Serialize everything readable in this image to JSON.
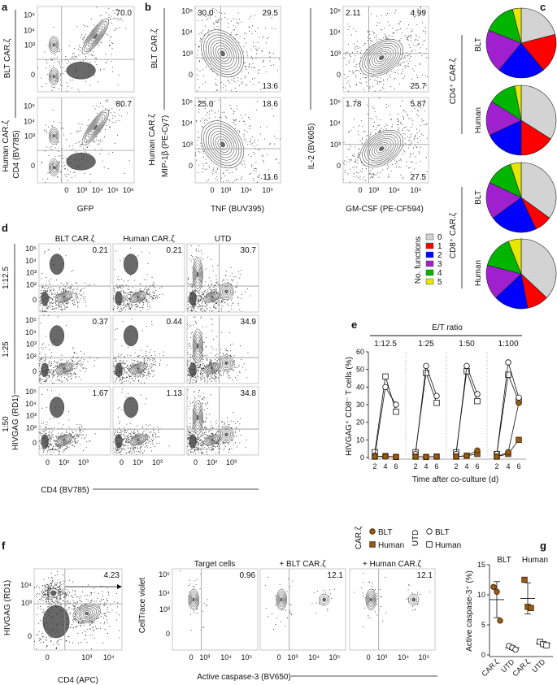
{
  "panel_letters": {
    "a": "a",
    "b": "b",
    "c": "c",
    "d": "d",
    "e": "e",
    "f": "f",
    "g": "g"
  },
  "panel_a": {
    "row_labels": [
      "BLT CAR.ζ",
      "Human CAR.ζ"
    ],
    "ylabel": "CD4 (BV785)",
    "xlabel": "GFP",
    "xticks": [
      "0",
      "10³",
      "10⁴",
      "10⁵",
      "10⁶"
    ],
    "yticks": [
      "0",
      "10³",
      "10⁴",
      "10⁵"
    ],
    "values": [
      "70.0",
      "80.7"
    ]
  },
  "panel_b": {
    "row_labels": [
      "BLT CAR.ζ",
      "Human CAR.ζ"
    ],
    "xticks": [
      "0",
      "10³",
      "10⁴",
      "10⁵"
    ],
    "yticks": [
      "0",
      "10³",
      "10⁴",
      "10⁵"
    ],
    "plots": [
      {
        "xlabel": "TNF (BUV395)",
        "ylabel": "MIP-1β (PE-Cy7)",
        "quadrants": [
          {
            "ul": "30.0",
            "ur": "29.5",
            "lr": "13.6"
          },
          {
            "ul": "25.0",
            "ur": "18.6",
            "lr": "11.6"
          }
        ]
      },
      {
        "xlabel": "GM-CSF (PE-CF594)",
        "ylabel": "IL-2 (BV605)",
        "quadrants": [
          {
            "ul": "2.11",
            "ur": "4.99",
            "lr": "25.7"
          },
          {
            "ul": "1.78",
            "ur": "5.87",
            "lr": "27.5"
          }
        ]
      }
    ]
  },
  "panel_c": {
    "groups": [
      "CD4⁺ CAR.ζ",
      "CD8⁺ CAR.ζ"
    ],
    "pie_labels": [
      "BLT",
      "Human",
      "BLT",
      "Human"
    ],
    "legend_title": "No. functions",
    "legend": [
      {
        "label": "0",
        "color": "#d3d3d3"
      },
      {
        "label": "1",
        "color": "#ff0000"
      },
      {
        "label": "2",
        "color": "#0000ff"
      },
      {
        "label": "3",
        "color": "#a020d0"
      },
      {
        "label": "4",
        "color": "#00b400"
      },
      {
        "label": "5",
        "color": "#e6e600"
      }
    ]
  },
  "panel_d": {
    "columns": [
      "BLT CAR.ζ",
      "Human CAR.ζ",
      "UTD"
    ],
    "rows": [
      "1:12.5",
      "1:25",
      "1:50"
    ],
    "ylabel": "HIVGAG (RD1)",
    "xlabel": "CD4 (BV785)",
    "xticks": [
      "0",
      "10²",
      "10³"
    ],
    "yticks": [
      "0",
      "10²",
      "10³",
      "10⁴",
      "10⁵"
    ],
    "values": [
      [
        "0.21",
        "0.21",
        "30.7"
      ],
      [
        "0.37",
        "0.44",
        "34.9"
      ],
      [
        "1.67",
        "1.13",
        "34.8"
      ]
    ]
  },
  "panel_f": {
    "plot1": {
      "xlabel": "CD4 (APC)",
      "ylabel": "HIVGAG (RD1)",
      "value": "4.23",
      "xticks": [
        "0",
        "10³",
        "10⁴"
      ],
      "yticks": [
        "0",
        "10³",
        "10⁴"
      ]
    },
    "titles": [
      "Target cells",
      "+ BLT CAR.ζ",
      "+ Human CAR.ζ"
    ],
    "values": [
      "0.96",
      "12.1",
      "12.1"
    ],
    "ylabel": "CellTrace violet",
    "xlabel": "Active caspase-3 (BV650)",
    "xticks": [
      "0",
      "10³",
      "10⁴",
      "10⁵"
    ],
    "yticks": [
      "0",
      "10³",
      "10⁴",
      "10⁵"
    ]
  },
  "chart_data": [
    {
      "type": "pie",
      "title": "No. functions",
      "categories": [
        "0",
        "1",
        "2",
        "3",
        "4",
        "5"
      ],
      "series": [
        {
          "name": "CD4⁺ CAR.ζ BLT",
          "values": [
            0.21,
            0.18,
            0.22,
            0.2,
            0.15,
            0.04
          ]
        },
        {
          "name": "CD4⁺ CAR.ζ Human",
          "values": [
            0.34,
            0.16,
            0.18,
            0.16,
            0.13,
            0.03
          ]
        },
        {
          "name": "CD8⁺ CAR.ζ BLT",
          "values": [
            0.35,
            0.08,
            0.22,
            0.17,
            0.13,
            0.05
          ]
        },
        {
          "name": "CD8⁺ CAR.ζ Human",
          "values": [
            0.37,
            0.1,
            0.16,
            0.16,
            0.15,
            0.06
          ]
        }
      ]
    },
    {
      "type": "line",
      "title": "E/T ratio",
      "groups": [
        "1:12.5",
        "1:25",
        "1:50",
        "1:100"
      ],
      "x": [
        2,
        4,
        6
      ],
      "xticks": [
        "2",
        "4",
        "6"
      ],
      "xlabel": "Time after co-culture (d)",
      "ylabel": "HIVGAG⁺ CD8⁻ T cells (%)",
      "ylim": [
        0,
        60
      ],
      "yticks": [
        "0",
        "10",
        "20",
        "30",
        "40",
        "50",
        "60"
      ],
      "legend_groups": [
        "CAR.ζ",
        "UTD"
      ],
      "series": [
        {
          "name": "BLT",
          "group": "CAR.ζ",
          "marker": "filled-circle",
          "values": [
            [
              0.5,
              0.5,
              0.3
            ],
            [
              0.5,
              0.3,
              0.5
            ],
            [
              0.5,
              1,
              4
            ],
            [
              0.5,
              3,
              31
            ]
          ]
        },
        {
          "name": "Human",
          "group": "CAR.ζ",
          "marker": "filled-square",
          "values": [
            [
              0.5,
              0.8,
              0.3
            ],
            [
              0.5,
              0.3,
              0.5
            ],
            [
              0.5,
              1,
              2
            ],
            [
              0.5,
              2,
              10
            ]
          ]
        },
        {
          "name": "BLT",
          "group": "UTD",
          "marker": "open-circle",
          "values": [
            [
              1,
              40,
              30
            ],
            [
              2,
              52,
              35
            ],
            [
              2,
              52,
              36
            ],
            [
              2,
              54,
              34
            ]
          ]
        },
        {
          "name": "Human",
          "group": "UTD",
          "marker": "open-square",
          "values": [
            [
              3,
              46,
              26
            ],
            [
              3,
              48,
              31
            ],
            [
              3,
              49,
              32
            ],
            [
              2,
              47,
              32
            ]
          ]
        }
      ],
      "colors": {
        "car": "#9a5a14"
      }
    },
    {
      "type": "scatter",
      "title": "",
      "group_labels": [
        "BLT",
        "Human"
      ],
      "categories": [
        "CAR.ζ",
        "UTD",
        "CAR.ζ",
        "UTD"
      ],
      "ylabel": "Active caspase-3⁺ (%)",
      "ylim": [
        0,
        15
      ],
      "yticks": [
        "0",
        "5",
        "10",
        "15"
      ],
      "points": [
        [
          11.3,
          10.5,
          5.7
        ],
        [
          1.5,
          1.2,
          0.9
        ],
        [
          12.5,
          8.0,
          7.8
        ],
        [
          2.2,
          1.8,
          1.6
        ]
      ],
      "mean": [
        9.2,
        1.2,
        9.4,
        1.9
      ],
      "sd": [
        3.0,
        0.3,
        2.6,
        0.3
      ]
    }
  ]
}
